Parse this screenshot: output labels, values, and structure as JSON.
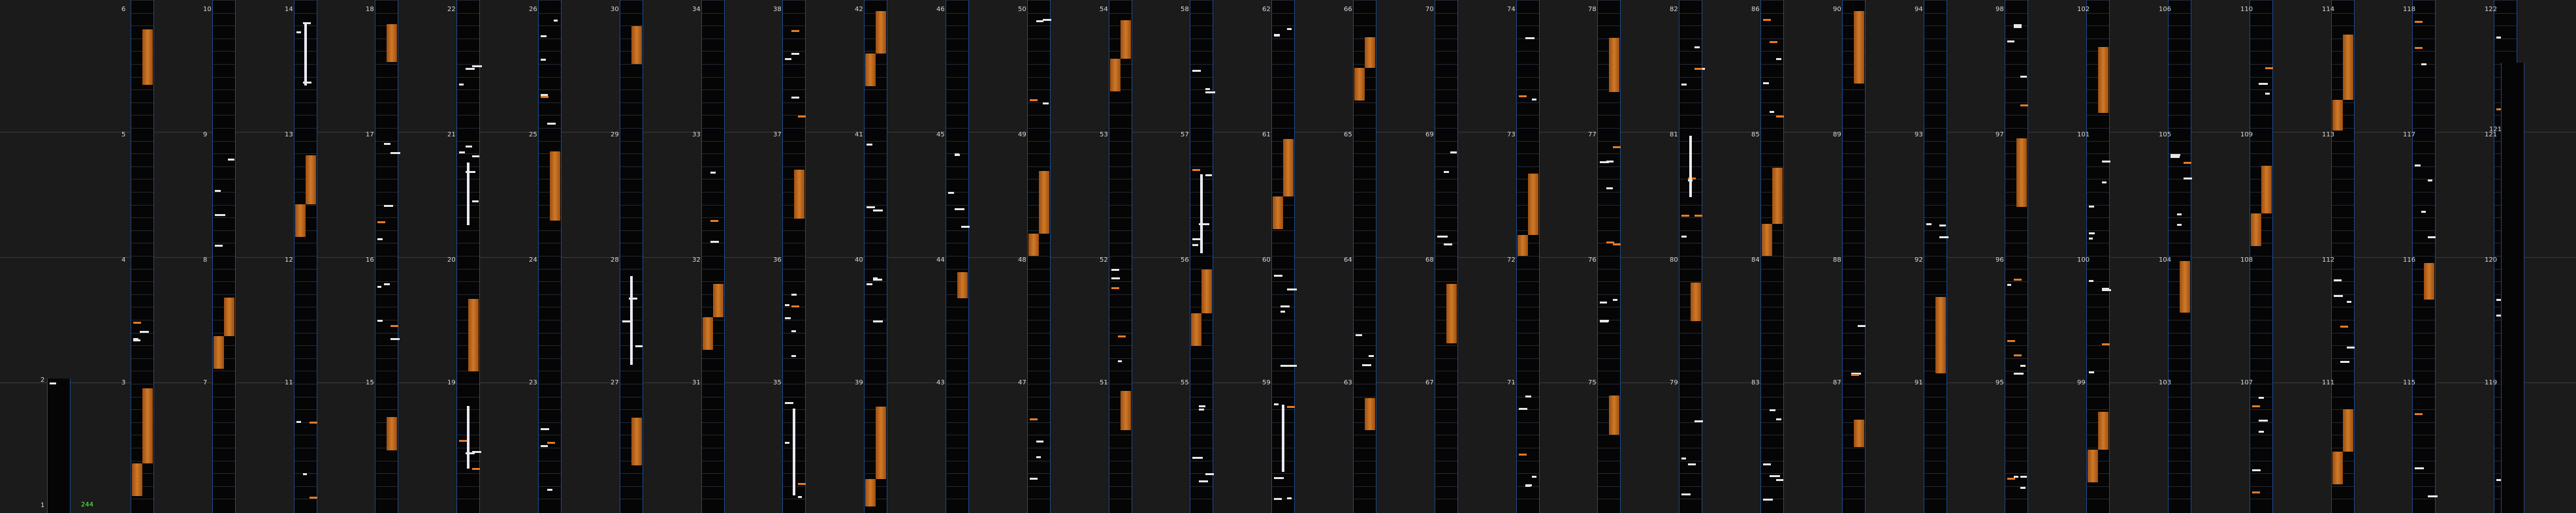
{
  "chart": {
    "measure_count": 121,
    "combo_counter": "244",
    "colors": {
      "background": "#1b1b1b",
      "lane": "#050505",
      "lane_border": "#1e4a8a",
      "hold": "#d07a28",
      "tap": "#e8e8e8",
      "slide_pink": "#c0307a",
      "slide_blue": "#1f6aa8",
      "counter": "#54ff40"
    },
    "note_glyphs": [
      "tap-note",
      "hold-note",
      "slide-arrow-pink",
      "slide-arrow-blue",
      "long-bar"
    ]
  }
}
